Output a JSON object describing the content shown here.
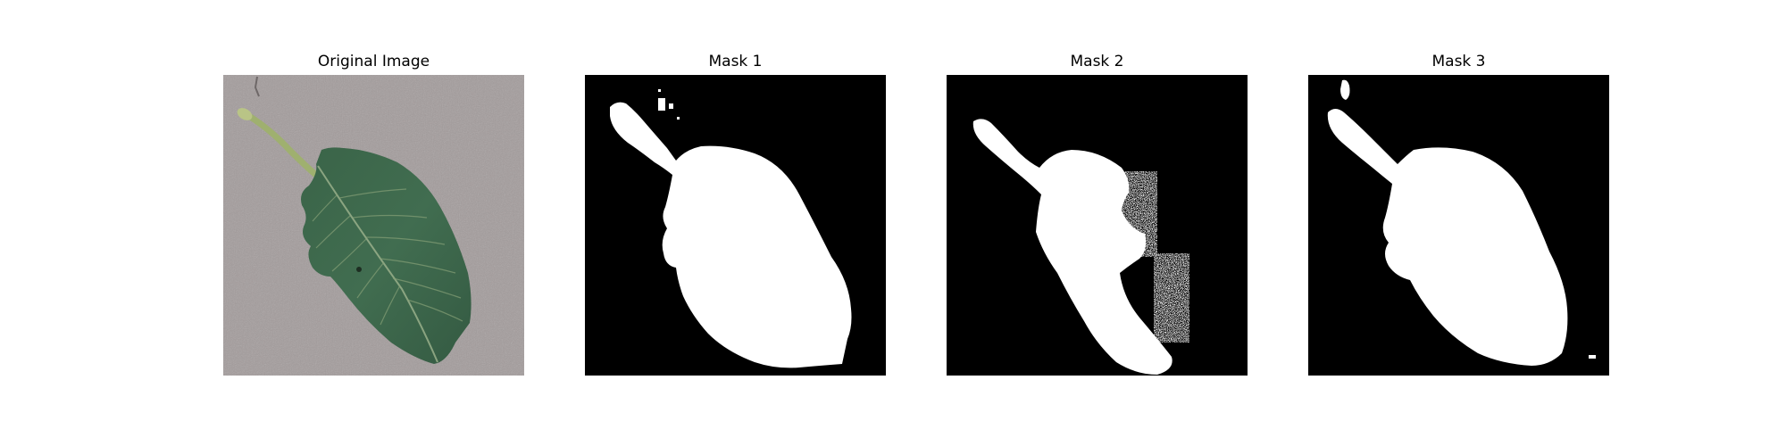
{
  "panels": [
    {
      "title": "Original Image",
      "kind": "photo"
    },
    {
      "title": "Mask 1",
      "kind": "mask"
    },
    {
      "title": "Mask 2",
      "kind": "mask"
    },
    {
      "title": "Mask 3",
      "kind": "mask"
    }
  ],
  "colors": {
    "background": "#ffffff",
    "mask_background": "#000000",
    "mask_foreground": "#ffffff",
    "ground": "#a39c9c",
    "leaf": "#3f6a4c",
    "leaf_vein": "#9fb48e",
    "stem": "#9fb06f"
  }
}
